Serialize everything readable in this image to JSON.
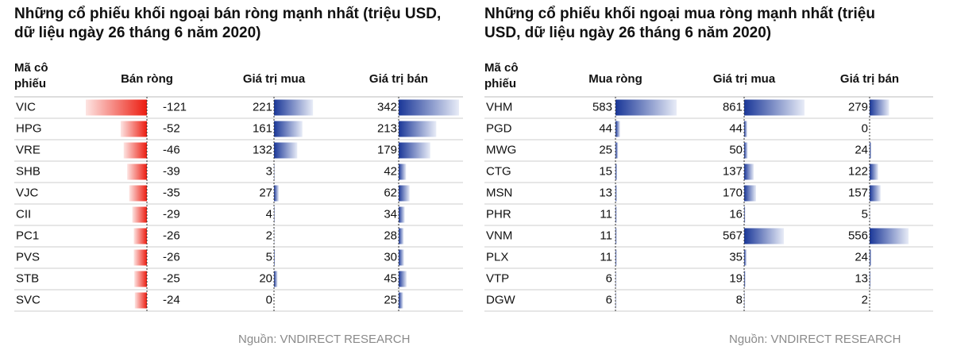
{
  "tables": [
    {
      "title": "Những cổ phiếu khối ngoại bán ròng mạnh nhất (triệu USD, dữ liệu ngày 26 tháng 6 năm 2020)",
      "columns": [
        "Mã cô phiếu",
        "Bán ròng",
        "Giá trị mua",
        "Giá trị bán"
      ],
      "rows": [
        [
          "VIC",
          -121,
          221,
          342
        ],
        [
          "HPG",
          -52,
          161,
          213
        ],
        [
          "VRE",
          -46,
          132,
          179
        ],
        [
          "SHB",
          -39,
          3,
          42
        ],
        [
          "VJC",
          -35,
          27,
          62
        ],
        [
          "CII",
          -29,
          4,
          34
        ],
        [
          "PC1",
          -26,
          2,
          28
        ],
        [
          "PVS",
          -26,
          5,
          30
        ],
        [
          "STB",
          -25,
          20,
          45
        ],
        [
          "SVC",
          -24,
          0,
          25
        ]
      ],
      "source": "Nguồn: VNDIRECT RESEARCH"
    },
    {
      "title": "Những cổ phiếu khối ngoại mua ròng mạnh nhất (triệu USD, dữ liệu ngày 26 tháng 6 năm 2020)",
      "columns": [
        "Mã cô phiếu",
        "Mua ròng",
        "Giá trị mua",
        "Giá trị bán"
      ],
      "rows": [
        [
          "VHM",
          583,
          861,
          279
        ],
        [
          "PGD",
          44,
          44,
          0
        ],
        [
          "MWG",
          25,
          50,
          24
        ],
        [
          "CTG",
          15,
          137,
          122
        ],
        [
          "MSN",
          13,
          170,
          157
        ],
        [
          "PHR",
          11,
          16,
          5
        ],
        [
          "VNM",
          11,
          567,
          556
        ],
        [
          "PLX",
          11,
          35,
          24
        ],
        [
          "VTP",
          6,
          19,
          13
        ],
        [
          "DGW",
          6,
          8,
          2
        ]
      ],
      "source": "Nguồn: VNDIRECT RESEARCH"
    }
  ]
}
